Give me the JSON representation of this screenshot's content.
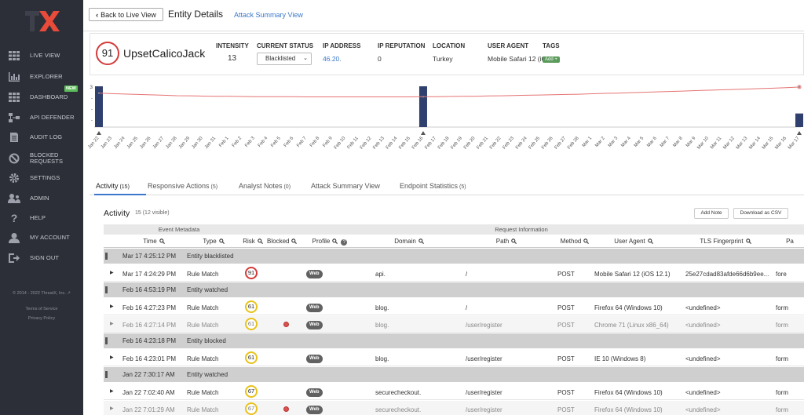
{
  "sidebar": {
    "items": [
      {
        "label": "LIVE VIEW",
        "icon": "grid-icon"
      },
      {
        "label": "EXPLORER",
        "icon": "bar-chart-icon"
      },
      {
        "label": "DASHBOARD",
        "icon": "grid-icon"
      },
      {
        "label": "API DEFENDER",
        "icon": "api-icon"
      },
      {
        "label": "AUDIT LOG",
        "icon": "document-icon"
      },
      {
        "label": "BLOCKED REQUESTS",
        "icon": "blocked-icon"
      },
      {
        "label": "SETTINGS",
        "icon": "gear-icon"
      },
      {
        "label": "ADMIN",
        "icon": "users-icon"
      },
      {
        "label": "HELP",
        "icon": "question-icon"
      },
      {
        "label": "MY ACCOUNT",
        "icon": "user-icon"
      },
      {
        "label": "SIGN OUT",
        "icon": "signout-icon"
      }
    ],
    "new_badge": "NEW",
    "copyright": "© 2014 - 2022 ThreatX, Inc.",
    "terms": "Terms of Service",
    "privacy": "Privacy Policy"
  },
  "topbar": {
    "back_label": "Back to Live View",
    "title": "Entity Details",
    "attack_link": "Attack Summary View"
  },
  "entity": {
    "risk": "91",
    "name": "UpsetCalicoJack",
    "intensity_label": "INTENSITY",
    "intensity": "13",
    "status_label": "CURRENT STATUS",
    "status": "Blacklisted",
    "ip_label": "IP ADDRESS",
    "ip": "46.20.",
    "rep_label": "IP REPUTATION",
    "rep": "0",
    "location_label": "LOCATION",
    "location": "Turkey",
    "ua_label": "USER AGENT",
    "ua": "Mobile Safari 12 (iC",
    "tags_label": "TAGS",
    "add_tag": "Add +"
  },
  "chart_data": {
    "type": "bar",
    "categories": [
      "Jan 22",
      "Jan 23",
      "Jan 24",
      "Jan 25",
      "Jan 26",
      "Jan 27",
      "Jan 28",
      "Jan 29",
      "Jan 30",
      "Jan 31",
      "Feb 1",
      "Feb 2",
      "Feb 3",
      "Feb 4",
      "Feb 5",
      "Feb 6",
      "Feb 7",
      "Feb 8",
      "Feb 9",
      "Feb 10",
      "Feb 11",
      "Feb 12",
      "Feb 13",
      "Feb 14",
      "Feb 15",
      "Feb 16",
      "Feb 17",
      "Feb 18",
      "Feb 19",
      "Feb 20",
      "Feb 21",
      "Feb 22",
      "Feb 23",
      "Feb 24",
      "Feb 25",
      "Feb 26",
      "Feb 27",
      "Feb 28",
      "Mar 1",
      "Mar 2",
      "Mar 3",
      "Mar 4",
      "Mar 5",
      "Mar 6",
      "Mar 7",
      "Mar 8",
      "Mar 9",
      "Mar 10",
      "Mar 11",
      "Mar 12",
      "Mar 13",
      "Mar 14",
      "Mar 15",
      "Mar 16",
      "Mar 17"
    ],
    "values": [
      3,
      0,
      0,
      0,
      0,
      0,
      0,
      0,
      0,
      0,
      0,
      0,
      0,
      0,
      0,
      0,
      0,
      0,
      0,
      0,
      0,
      0,
      0,
      0,
      0,
      3,
      0,
      0,
      0,
      0,
      0,
      0,
      0,
      0,
      0,
      0,
      0,
      0,
      0,
      0,
      0,
      0,
      0,
      0,
      0,
      0,
      0,
      0,
      0,
      0,
      0,
      0,
      0,
      0,
      1
    ],
    "line_values": [
      2.5,
      2.46,
      2.43,
      2.4,
      2.37,
      2.34,
      2.31,
      2.3,
      2.28,
      2.27,
      2.26,
      2.25,
      2.24,
      2.24,
      2.23,
      2.23,
      2.22,
      2.22,
      2.22,
      2.22,
      2.22,
      2.22,
      2.22,
      2.22,
      2.22,
      2.23,
      2.24,
      2.25,
      2.26,
      2.27,
      2.29,
      2.3,
      2.32,
      2.34,
      2.36,
      2.38,
      2.4,
      2.42,
      2.45,
      2.48,
      2.5,
      2.53,
      2.56,
      2.59,
      2.62,
      2.65,
      2.68,
      2.71,
      2.74,
      2.77,
      2.8,
      2.83,
      2.86,
      2.9,
      2.95
    ],
    "yticks": [
      "3",
      "-",
      "-",
      "-"
    ],
    "ylim": [
      0,
      3
    ],
    "markers": [
      "Jan 22",
      "Feb 16",
      "Mar 17"
    ]
  },
  "tabs": [
    {
      "label": "Activity",
      "count": "(15)"
    },
    {
      "label": "Responsive Actions",
      "count": "(5)"
    },
    {
      "label": "Analyst Notes",
      "count": "(0)"
    },
    {
      "label": "Attack Summary View",
      "count": ""
    },
    {
      "label": "Endpoint Statistics",
      "count": "(5)"
    }
  ],
  "activity": {
    "title": "Activity",
    "subtitle": "15 (12 visible)",
    "add_note": "Add Note",
    "download": "Download as CSV"
  },
  "table": {
    "group_event": "Event Metadata",
    "group_request": "Request Information",
    "columns": [
      "Time",
      "Type",
      "Risk",
      "Blocked",
      "Profile",
      "Domain",
      "Path",
      "Method",
      "User Agent",
      "TLS Fingerprint",
      "Pa"
    ],
    "rows": [
      {
        "kind": "status",
        "time": "Mar 17 4:25:12 PM",
        "type": "Entity blacklisted"
      },
      {
        "kind": "data",
        "time": "Mar 17 4:24:29 PM",
        "type": "Rule Match",
        "risk": "91",
        "riskcolor": "#d43a3a",
        "blocked": false,
        "profile": "Web",
        "domain": "api.",
        "path": "/",
        "method": "POST",
        "ua": "Mobile Safari 12 (iOS 12.1)",
        "tls": "25e27cdad83afde66d6b9ee...",
        "pa": "fore",
        "dim": false
      },
      {
        "kind": "status",
        "time": "Feb 16 4:53:19 PM",
        "type": "Entity watched"
      },
      {
        "kind": "data",
        "time": "Feb 16 4:27:23 PM",
        "type": "Rule Match",
        "risk": "61",
        "riskcolor": "#e8c21a",
        "blocked": false,
        "profile": "Web",
        "domain": "blog.",
        "path": "/",
        "method": "POST",
        "ua": "Firefox 64 (Windows 10)",
        "tls": "<undefined>",
        "pa": "form",
        "dim": false
      },
      {
        "kind": "data",
        "time": "Feb 16 4:27:14 PM",
        "type": "Rule Match",
        "risk": "61",
        "riskcolor": "#e8c21a",
        "blocked": true,
        "profile": "Web",
        "domain": "blog.",
        "path": "/user/register",
        "method": "POST",
        "ua": "Chrome 71 (Linux x86_64)",
        "tls": "<undefined>",
        "pa": "form",
        "dim": true
      },
      {
        "kind": "status",
        "time": "Feb 16 4:23:18 PM",
        "type": "Entity blocked"
      },
      {
        "kind": "data",
        "time": "Feb 16 4:23:01 PM",
        "type": "Rule Match",
        "risk": "61",
        "riskcolor": "#e8c21a",
        "blocked": false,
        "profile": "Web",
        "domain": "blog.",
        "path": "/user/register",
        "method": "POST",
        "ua": "IE 10 (Windows 8)",
        "tls": "<undefined>",
        "pa": "form",
        "dim": false
      },
      {
        "kind": "status",
        "time": "Jan 22 7:30:17 AM",
        "type": "Entity watched"
      },
      {
        "kind": "data",
        "time": "Jan 22 7:02:40 AM",
        "type": "Rule Match",
        "risk": "67",
        "riskcolor": "#e8c21a",
        "blocked": false,
        "profile": "Web",
        "domain": "securecheckout.",
        "path": "/user/register",
        "method": "POST",
        "ua": "Firefox 64 (Windows 10)",
        "tls": "<undefined>",
        "pa": "form",
        "dim": false
      },
      {
        "kind": "data",
        "time": "Jan 22 7:01:29 AM",
        "type": "Rule Match",
        "risk": "67",
        "riskcolor": "#e8c21a",
        "blocked": true,
        "profile": "Web",
        "domain": "securecheckout.",
        "path": "/user/register",
        "method": "POST",
        "ua": "Firefox 64 (Windows 10)",
        "tls": "<undefined>",
        "pa": "form",
        "dim": true
      }
    ]
  },
  "colors": {
    "accent": "#3a78c9",
    "sidebar": "#2d2f38",
    "bar": "#2f3f6e",
    "line": "#e57373",
    "risk_high": "#d43a3a",
    "risk_med": "#e8c21a"
  }
}
